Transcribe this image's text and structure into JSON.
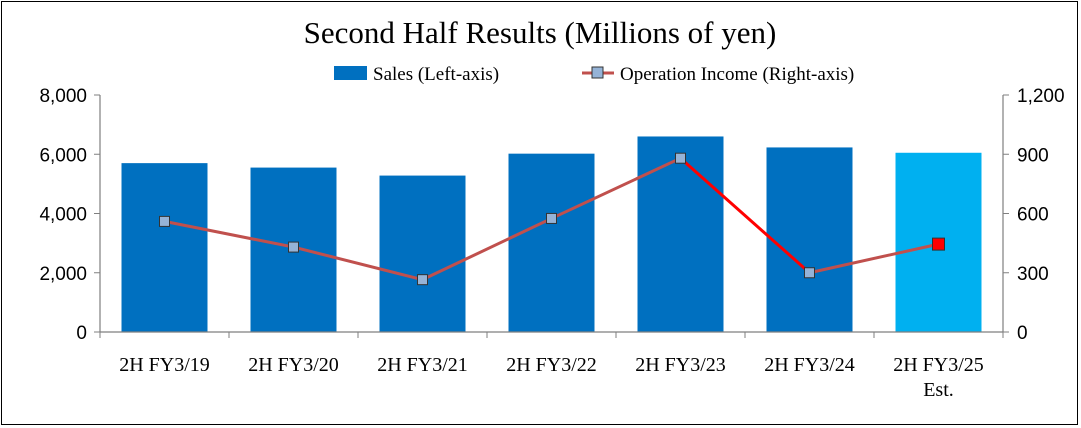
{
  "chart_data": {
    "type": "bar",
    "title": "Second Half Results (Millions of yen)",
    "categories": [
      [
        "2H FY3/19"
      ],
      [
        "2H FY3/20"
      ],
      [
        "2H FY3/21"
      ],
      [
        "2H FY3/22"
      ],
      [
        "2H FY3/23"
      ],
      [
        "2H FY3/24"
      ],
      [
        "2H FY3/25",
        "Est."
      ]
    ],
    "series": [
      {
        "name": "Sales (Left-axis)",
        "type": "bar",
        "axis": "left",
        "values": [
          5700,
          5550,
          5280,
          6020,
          6600,
          6230,
          6050
        ],
        "color": "#0070C0",
        "estimate_color": "#00B0F0"
      },
      {
        "name": "Operation Income (Right-axis)",
        "type": "line",
        "axis": "right",
        "values": [
          560,
          430,
          265,
          575,
          880,
          300,
          445
        ],
        "line_color": "#C0504D",
        "highlight_line_color": "#FF0000",
        "marker_color": "#95B3D7",
        "estimate_marker_color": "#FF0000"
      }
    ],
    "left_axis": {
      "ylim": [
        0,
        8000
      ],
      "ticks": [
        "0",
        "2,000",
        "4,000",
        "6,000",
        "8,000"
      ]
    },
    "right_axis": {
      "ylim": [
        0,
        1200
      ],
      "ticks": [
        "0",
        "300",
        "600",
        "900",
        "1,200"
      ]
    },
    "grid": false,
    "legend_placement": "top"
  }
}
